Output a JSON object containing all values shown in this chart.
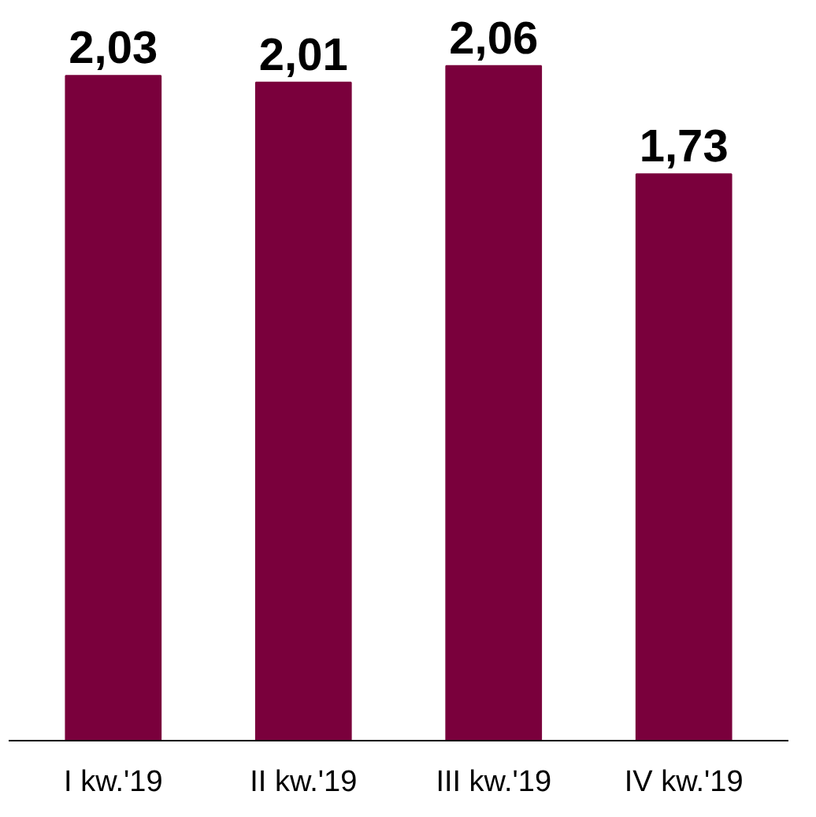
{
  "chart_data": {
    "type": "bar",
    "categories": [
      "I kw.'19",
      "II kw.'19",
      "III kw.'19",
      "IV kw.'19"
    ],
    "values": [
      2.03,
      2.01,
      2.06,
      1.73
    ],
    "value_labels": [
      "2,03",
      "2,01",
      "2,06",
      "1,73"
    ],
    "color": "#7a003c",
    "tick_labels": "x"
  }
}
